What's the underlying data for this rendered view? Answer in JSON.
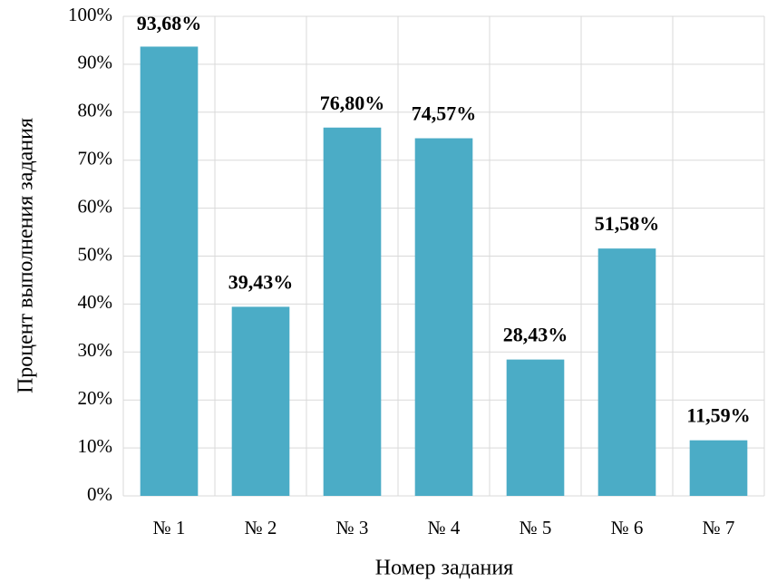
{
  "chart_data": {
    "type": "bar",
    "categories": [
      "№ 1",
      "№ 2",
      "№ 3",
      "№ 4",
      "№ 5",
      "№ 6",
      "№ 7"
    ],
    "values": [
      93.68,
      39.43,
      76.8,
      74.57,
      28.43,
      51.58,
      11.59
    ],
    "value_labels": [
      "93,68%",
      "39,43%",
      "76,80%",
      "74,57%",
      "28,43%",
      "51,58%",
      "11,59%"
    ],
    "color": "#4bacc6",
    "xlabel": "Номер задания",
    "ylabel": "Процент выполнения задания",
    "ylim": [
      0,
      100
    ],
    "yticks": [
      {
        "value": 0,
        "label": "0%"
      },
      {
        "value": 10,
        "label": "10%"
      },
      {
        "value": 20,
        "label": "20%"
      },
      {
        "value": 30,
        "label": "30%"
      },
      {
        "value": 40,
        "label": "40%"
      },
      {
        "value": 50,
        "label": "50%"
      },
      {
        "value": 60,
        "label": "60%"
      },
      {
        "value": 70,
        "label": "70%"
      },
      {
        "value": 80,
        "label": "80%"
      },
      {
        "value": 90,
        "label": "90%"
      },
      {
        "value": 100,
        "label": "100%"
      }
    ],
    "grid": true
  }
}
